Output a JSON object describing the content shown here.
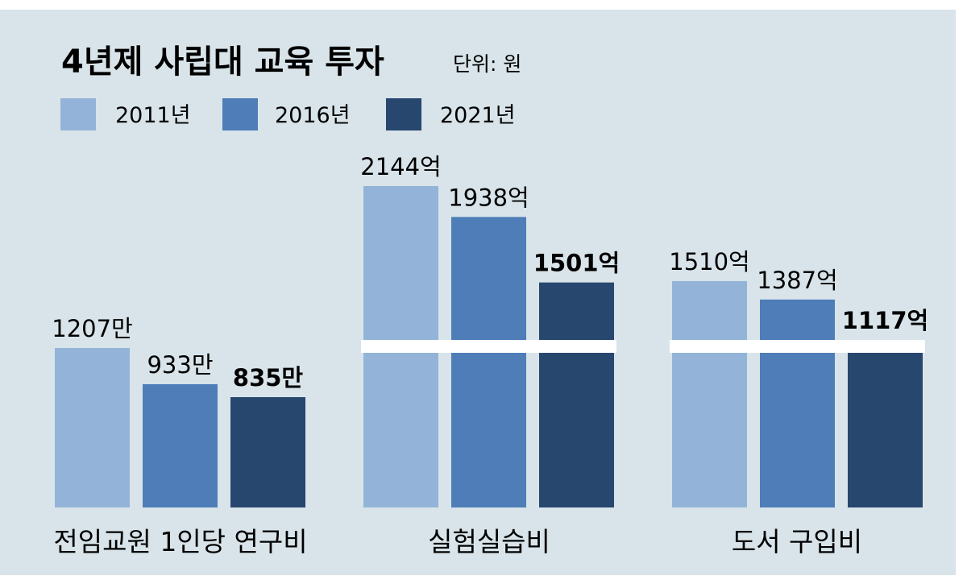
{
  "chart_data": {
    "type": "bar",
    "title": "4년제 사립대 교육 투자",
    "unit_label": "단위: 원",
    "legend_position": "top-left",
    "grid": false,
    "colors": {
      "background": "#d8e4e9",
      "2011년": "#93b4d8",
      "2016년": "#4e7db8",
      "2021년": "#28476f"
    },
    "series": [
      {
        "name": "2011년",
        "color_key": "2011년"
      },
      {
        "name": "2016년",
        "color_key": "2016년"
      },
      {
        "name": "2021년",
        "color_key": "2021년"
      }
    ],
    "groups": [
      {
        "category": "전임교원 1인당 연구비",
        "values": [
          12070000,
          9330000,
          8350000
        ],
        "labels": [
          "1207만",
          "933만",
          "835만"
        ],
        "axis_break": false,
        "ylim": [
          0,
          13000000
        ]
      },
      {
        "category": "실험실습비",
        "values": [
          214400000000,
          193800000000,
          150100000000
        ],
        "labels": [
          "2144억",
          "1938억",
          "1501억"
        ],
        "axis_break": true,
        "ylim": [
          0,
          230000000000
        ]
      },
      {
        "category": "도서 구입비",
        "values": [
          151000000000,
          138700000000,
          111700000000
        ],
        "labels": [
          "1510억",
          "1387억",
          "1117억"
        ],
        "axis_break": true,
        "ylim": [
          0,
          230000000000
        ]
      }
    ]
  }
}
